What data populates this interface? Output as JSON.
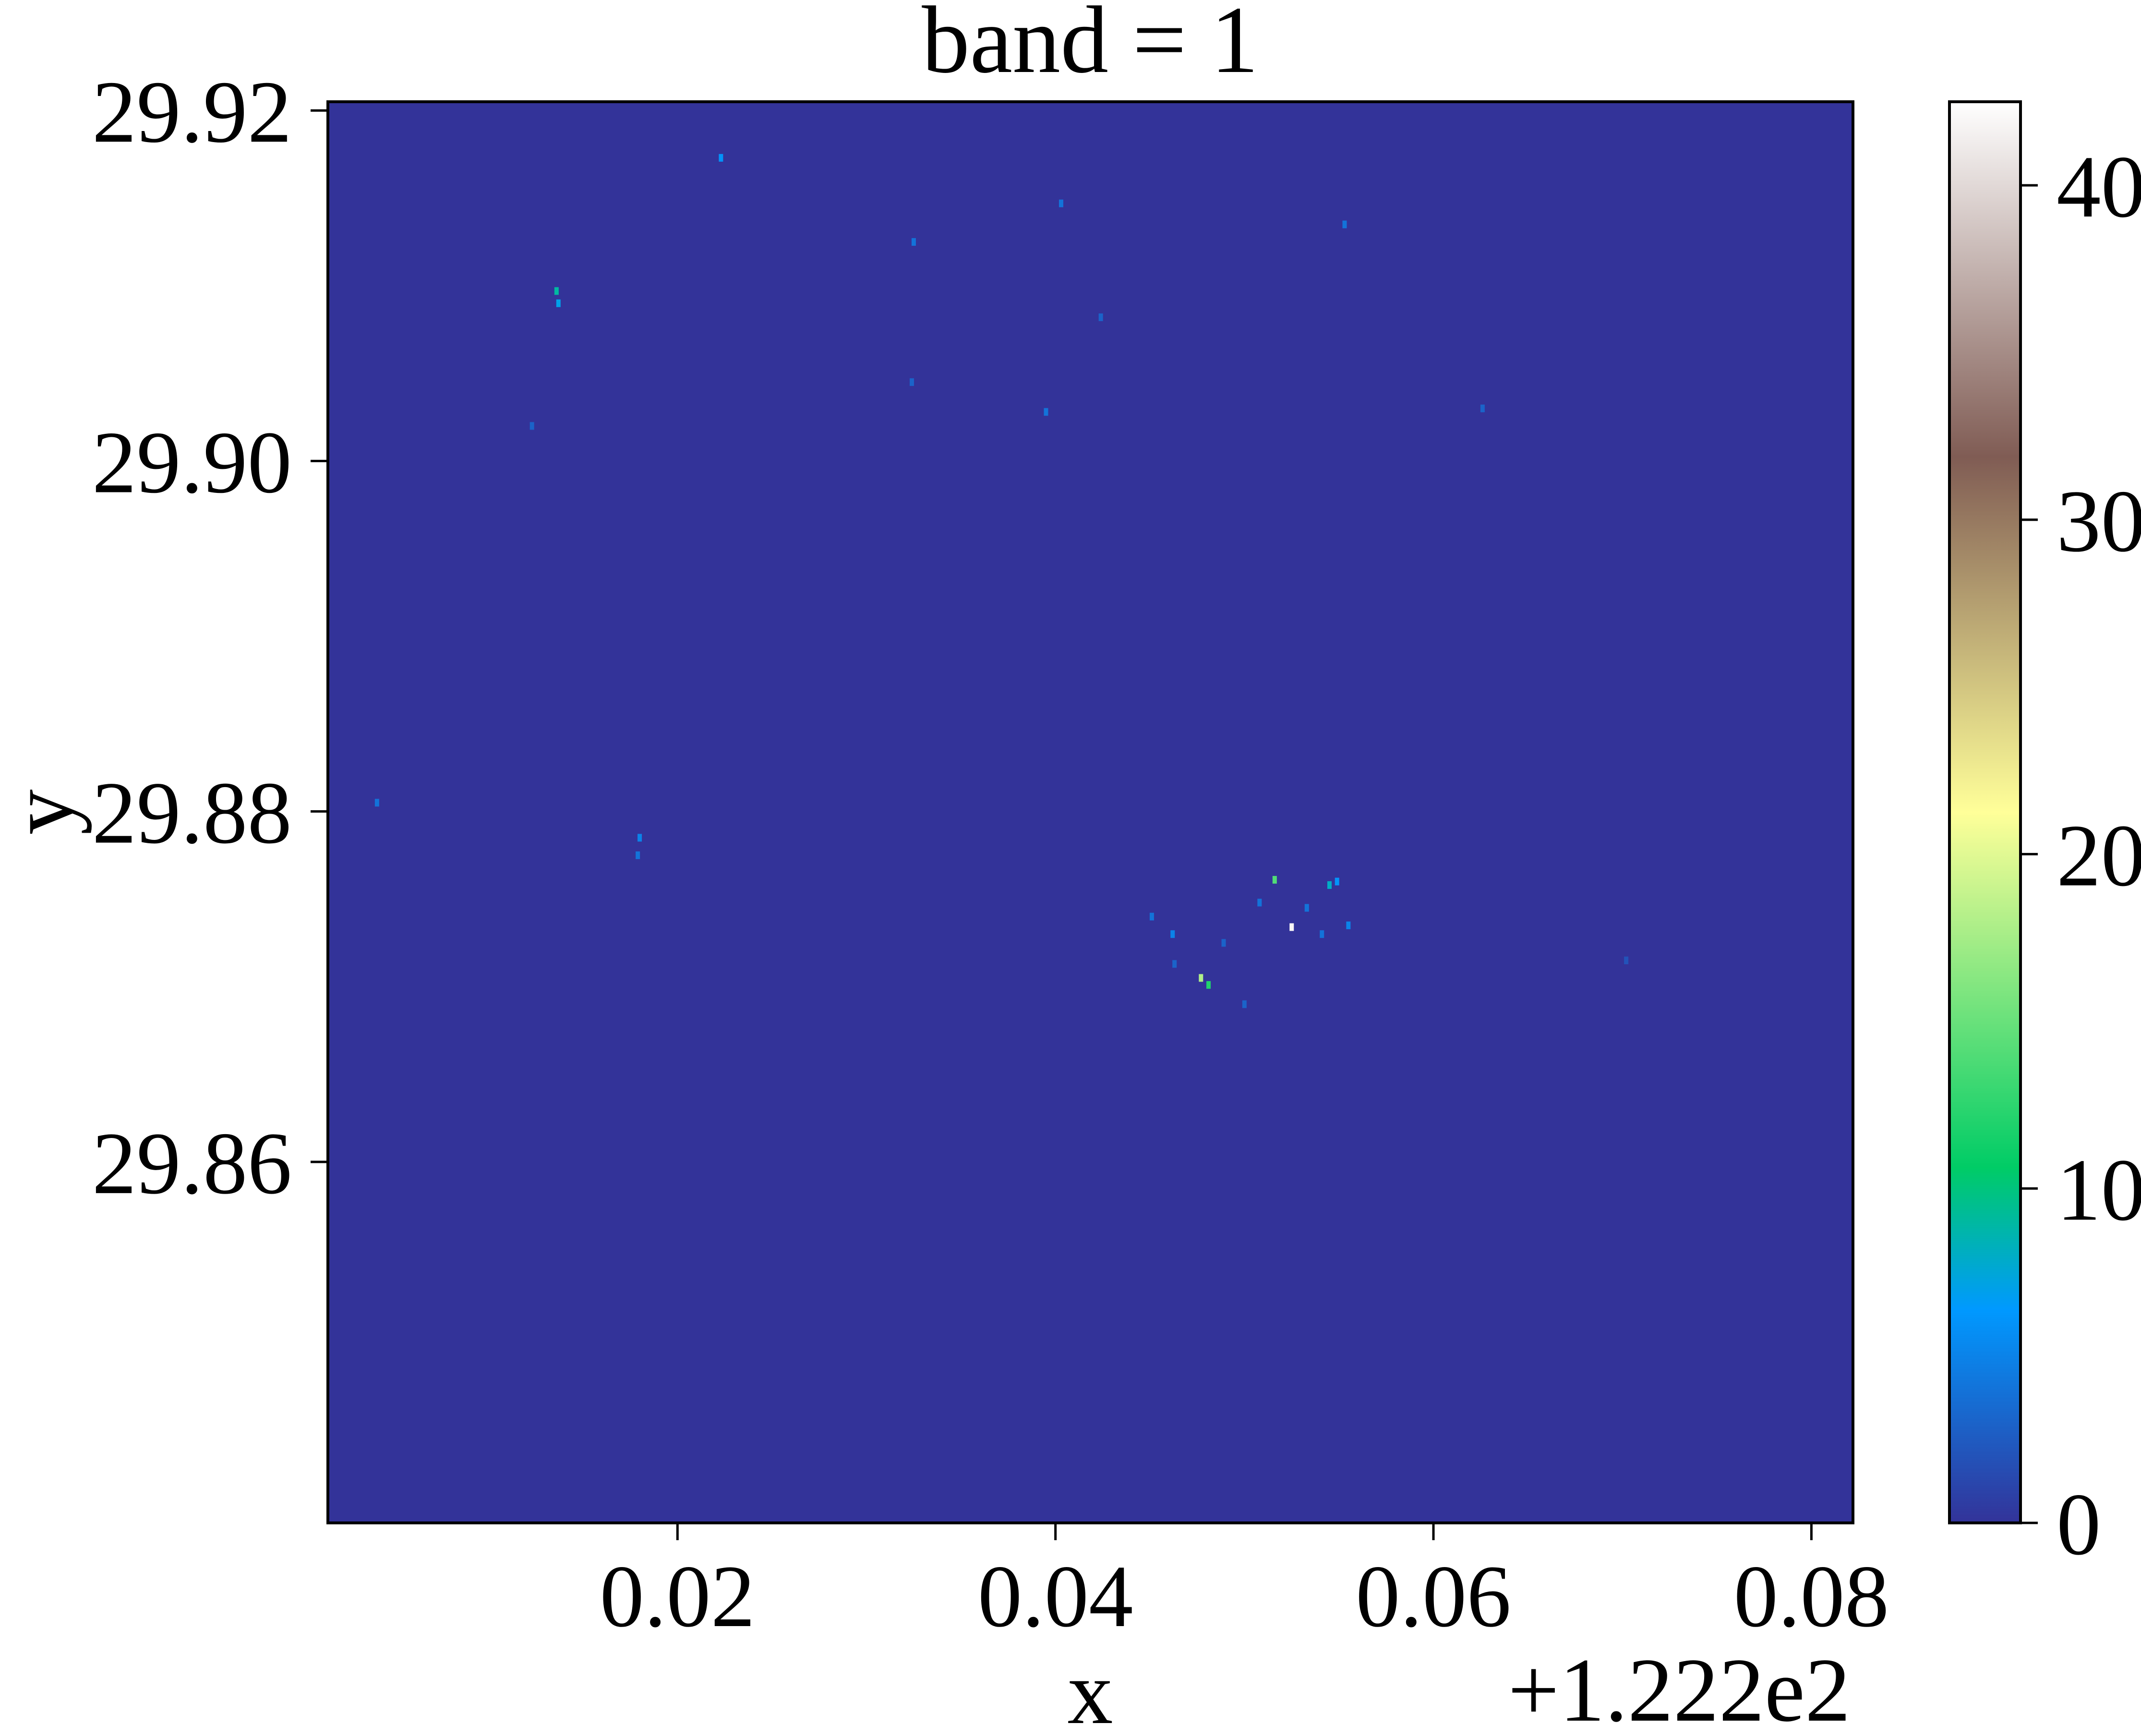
{
  "chart_data": {
    "type": "heatmap",
    "title": "band = 1",
    "xlabel": "x",
    "ylabel": "y",
    "x_offset_label": "+1.222e2",
    "xlim": [
      0.0015,
      0.0822
    ],
    "ylim": [
      29.8394,
      29.9205
    ],
    "x_ticks": [
      0.02,
      0.04,
      0.06,
      0.08
    ],
    "x_tick_labels": [
      "0.02",
      "0.04",
      "0.06",
      "0.08"
    ],
    "y_ticks": [
      29.86,
      29.88,
      29.9,
      29.92
    ],
    "y_tick_labels": [
      "29.86",
      "29.88",
      "29.90",
      "29.92"
    ],
    "colorbar": {
      "colormap": "terrain",
      "vmin": 0,
      "vmax": 42.5,
      "ticks": [
        0,
        10,
        20,
        30,
        40
      ],
      "tick_labels": [
        "0",
        "10",
        "20",
        "30",
        "40"
      ],
      "stops": [
        {
          "v": 0.0,
          "color": "#333399"
        },
        {
          "v": 0.15,
          "color": "#0099ff"
        },
        {
          "v": 0.25,
          "color": "#00cc66"
        },
        {
          "v": 0.5,
          "color": "#ffff99"
        },
        {
          "v": 0.75,
          "color": "#805c54"
        },
        {
          "v": 1.0,
          "color": "#ffffff"
        }
      ]
    },
    "background_value": 0,
    "hotspots": [
      {
        "x": 0.0136,
        "y": 29.9097,
        "value": 9
      },
      {
        "x": 0.0137,
        "y": 29.909,
        "value": 7
      },
      {
        "x": 0.0223,
        "y": 29.9173,
        "value": 6
      },
      {
        "x": 0.0325,
        "y": 29.9125,
        "value": 4
      },
      {
        "x": 0.0403,
        "y": 29.9147,
        "value": 4
      },
      {
        "x": 0.0553,
        "y": 29.9135,
        "value": 4
      },
      {
        "x": 0.0424,
        "y": 29.9082,
        "value": 3
      },
      {
        "x": 0.0395,
        "y": 29.9028,
        "value": 4
      },
      {
        "x": 0.0123,
        "y": 29.902,
        "value": 3
      },
      {
        "x": 0.0324,
        "y": 29.9045,
        "value": 3
      },
      {
        "x": 0.0626,
        "y": 29.903,
        "value": 3
      },
      {
        "x": 0.0041,
        "y": 29.8805,
        "value": 4
      },
      {
        "x": 0.018,
        "y": 29.8785,
        "value": 5
      },
      {
        "x": 0.0179,
        "y": 29.8775,
        "value": 4
      },
      {
        "x": 0.0516,
        "y": 29.8761,
        "value": 14
      },
      {
        "x": 0.0525,
        "y": 29.8734,
        "value": 42
      },
      {
        "x": 0.0545,
        "y": 29.8758,
        "value": 8
      },
      {
        "x": 0.0549,
        "y": 29.876,
        "value": 6
      },
      {
        "x": 0.0477,
        "y": 29.8705,
        "value": 18
      },
      {
        "x": 0.0481,
        "y": 29.8701,
        "value": 12
      },
      {
        "x": 0.0462,
        "y": 29.873,
        "value": 5
      },
      {
        "x": 0.0451,
        "y": 29.874,
        "value": 4
      },
      {
        "x": 0.0489,
        "y": 29.8725,
        "value": 3
      },
      {
        "x": 0.0533,
        "y": 29.8745,
        "value": 4
      },
      {
        "x": 0.0555,
        "y": 29.8735,
        "value": 5
      },
      {
        "x": 0.05,
        "y": 29.869,
        "value": 3
      },
      {
        "x": 0.0541,
        "y": 29.873,
        "value": 4
      },
      {
        "x": 0.0702,
        "y": 29.8715,
        "value": 2
      },
      {
        "x": 0.0463,
        "y": 29.8713,
        "value": 3
      },
      {
        "x": 0.0508,
        "y": 29.8748,
        "value": 4
      }
    ]
  }
}
